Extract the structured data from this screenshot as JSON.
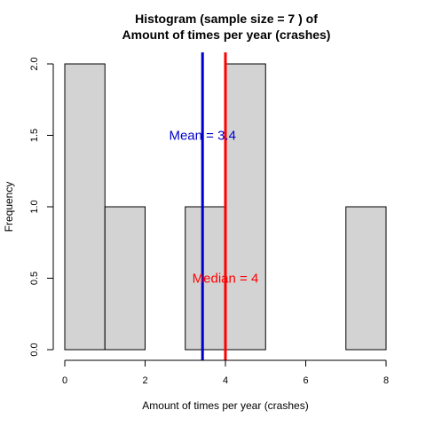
{
  "chart_data": {
    "type": "histogram",
    "title_line1": "Histogram (sample size =  7 ) of",
    "title_line2": "Amount of times per year (crashes)",
    "xlabel": "Amount of times per year (crashes)",
    "ylabel": "Frequency",
    "xlim": [
      0,
      8
    ],
    "ylim": [
      0,
      2
    ],
    "x_ticks": [
      0,
      2,
      4,
      6,
      8
    ],
    "y_ticks": [
      0.0,
      0.5,
      1.0,
      1.5,
      2.0
    ],
    "y_tick_labels": [
      "0.0",
      "0.5",
      "1.0",
      "1.5",
      "2.0"
    ],
    "bins": [
      {
        "start": 0,
        "end": 1,
        "count": 2
      },
      {
        "start": 1,
        "end": 2,
        "count": 1
      },
      {
        "start": 2,
        "end": 3,
        "count": 0
      },
      {
        "start": 3,
        "end": 4,
        "count": 1
      },
      {
        "start": 4,
        "end": 5,
        "count": 2
      },
      {
        "start": 5,
        "end": 6,
        "count": 0
      },
      {
        "start": 6,
        "end": 7,
        "count": 0
      },
      {
        "start": 7,
        "end": 8,
        "count": 1
      }
    ],
    "mean": {
      "value": 3.43,
      "label": "Mean = 3.4",
      "label_y": 1.5,
      "color": "#0000cc"
    },
    "median": {
      "value": 4,
      "label": "Median = 4",
      "label_y": 0.5,
      "color": "#ff0000"
    },
    "bar_color": "#d3d3d3",
    "grid": false,
    "legend": "none"
  }
}
